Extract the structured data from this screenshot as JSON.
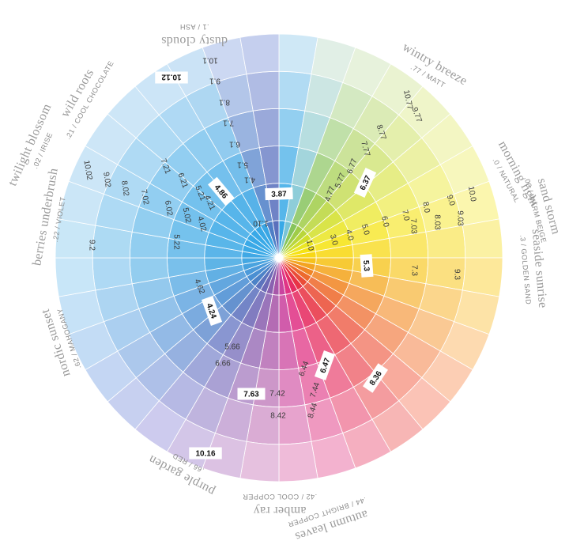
{
  "wheel": {
    "sectors": 36,
    "rings": 6,
    "colors": [
      "#cfe8f6",
      "#e1efe6",
      "#e7f2dc",
      "#eaf3d1",
      "#eff5c9",
      "#f3f6c3",
      "#f7f7bd",
      "#fbf6ae",
      "#fbf1a3",
      "#fde89a",
      "#fde3a7",
      "#fddab0",
      "#fcceb4",
      "#fbc3b6",
      "#f7b6b5",
      "#f5afc0",
      "#f3b2cf",
      "#efbbd9",
      "#e6c1df",
      "#dcc2e3",
      "#d3c6e8",
      "#cdcbee",
      "#c7d0f0",
      "#c4d6f3",
      "#c3dcf5",
      "#c6e2f7",
      "#c8e6f8",
      "#c9e7f7",
      "#cbe6f7",
      "#cce6f7",
      "#cde6f7",
      "#cde6f7",
      "#cce5f7",
      "#cbe3f6",
      "#ccd8f2",
      "#c5cfee"
    ],
    "center_colors": [
      "#38a9e7",
      "#79c4d6",
      "#86c45c",
      "#9fcc48",
      "#b9d63a",
      "#d2df2b",
      "#ebe624",
      "#f6e314",
      "#f8d816",
      "#f5c21c",
      "#f3a421",
      "#f08526",
      "#ed6a2e",
      "#ea4d38",
      "#e83447",
      "#e62d62",
      "#e03586",
      "#c9449f",
      "#a857a9",
      "#8a62b0",
      "#6d6ab6",
      "#5c73bd",
      "#4c82c7",
      "#4a8fd2",
      "#4b9ada",
      "#49a3df",
      "#44a7e2",
      "#3fa8e5",
      "#3caae6",
      "#3aa9e7",
      "#39a9e7",
      "#39a9e7",
      "#39a8e6",
      "#3aa6e4",
      "#4e7fc6",
      "#5a70bc"
    ]
  },
  "codes": [
    {
      "text": "3.87",
      "highlight": true
    },
    {
      "text": "10.1",
      "highlight": false
    },
    {
      "text": "9.1",
      "highlight": false
    },
    {
      "text": "8.1",
      "highlight": false
    },
    {
      "text": "7.1",
      "highlight": false
    },
    {
      "text": "6.1",
      "highlight": false
    },
    {
      "text": "5.1",
      "highlight": false
    },
    {
      "text": "4.1",
      "highlight": false
    },
    {
      "text": "1.10",
      "highlight": false
    },
    {
      "text": "10.12",
      "highlight": true
    },
    {
      "text": "10.77",
      "highlight": false
    },
    {
      "text": "9.77",
      "highlight": false
    },
    {
      "text": "8.77",
      "highlight": false
    },
    {
      "text": "7.77",
      "highlight": false
    },
    {
      "text": "6.77",
      "highlight": false
    },
    {
      "text": "5.77",
      "highlight": false
    },
    {
      "text": "4.77",
      "highlight": false
    },
    {
      "text": "6.37",
      "highlight": true
    },
    {
      "text": "10.0",
      "highlight": false
    },
    {
      "text": "9.0",
      "highlight": false
    },
    {
      "text": "8.0",
      "highlight": false
    },
    {
      "text": "7.0",
      "highlight": false
    },
    {
      "text": "6.0",
      "highlight": false
    },
    {
      "text": "5.0",
      "highlight": false
    },
    {
      "text": "4.0",
      "highlight": false
    },
    {
      "text": "3.0",
      "highlight": false
    },
    {
      "text": "1.0",
      "highlight": false
    },
    {
      "text": "9.03",
      "highlight": false
    },
    {
      "text": "8.03",
      "highlight": false
    },
    {
      "text": "7.03",
      "highlight": false
    },
    {
      "text": "9.3",
      "highlight": false
    },
    {
      "text": "7.3",
      "highlight": false
    },
    {
      "text": "5.3",
      "highlight": true
    },
    {
      "text": "8.36",
      "highlight": true
    },
    {
      "text": "6.47",
      "highlight": true
    },
    {
      "text": "6.44",
      "highlight": false
    },
    {
      "text": "7.44",
      "highlight": false
    },
    {
      "text": "8.44",
      "highlight": false
    },
    {
      "text": "7.42",
      "highlight": false
    },
    {
      "text": "8.42",
      "highlight": false
    },
    {
      "text": "7.63",
      "highlight": true
    },
    {
      "text": "5.66",
      "highlight": false
    },
    {
      "text": "6.66",
      "highlight": false
    },
    {
      "text": "10.16",
      "highlight": true
    },
    {
      "text": "4.24",
      "highlight": true
    },
    {
      "text": "4.62",
      "highlight": false
    },
    {
      "text": "9.2",
      "highlight": false
    },
    {
      "text": "10.02",
      "highlight": false
    },
    {
      "text": "9.02",
      "highlight": false
    },
    {
      "text": "8.02",
      "highlight": false
    },
    {
      "text": "7.02",
      "highlight": false
    },
    {
      "text": "6.02",
      "highlight": false
    },
    {
      "text": "5.02",
      "highlight": false
    },
    {
      "text": "4.02",
      "highlight": false
    },
    {
      "text": "5.22",
      "highlight": false
    },
    {
      "text": "7.21",
      "highlight": false
    },
    {
      "text": "6.21",
      "highlight": false
    },
    {
      "text": "5.21",
      "highlight": false
    },
    {
      "text": "4.21",
      "highlight": false
    },
    {
      "text": "4.86",
      "highlight": true
    }
  ],
  "shades": [
    {
      "name": "dusty clouds",
      "code": ".1 / ASH"
    },
    {
      "name": "wild roots",
      "code": ".21 / COOL CHOCOLATE"
    },
    {
      "name": "twilight blossom",
      "code": ".02 / IRISE"
    },
    {
      "name": "berries underbrush",
      "code": ".22 / VIOLET"
    },
    {
      "name": "nordic sunset",
      "code": ".62 / MAHOGANY"
    },
    {
      "name": "purple garden",
      "code": ".66 / RED"
    },
    {
      "name": "amber ray",
      "code": ".42 / COOL COPPER"
    },
    {
      "name": "autumn leaves",
      "code": ".44 / BRIGHT COPPER"
    },
    {
      "name": "wintry breeze",
      "code": ".77 / MATT"
    },
    {
      "name": "morning light",
      "code": ".0 / NATURAL"
    },
    {
      "name": "sand storm",
      "code": ".03 / WARM BEIGE"
    },
    {
      "name": "seaside sunrise",
      "code": ".3 / GOLDEN SAND"
    }
  ]
}
